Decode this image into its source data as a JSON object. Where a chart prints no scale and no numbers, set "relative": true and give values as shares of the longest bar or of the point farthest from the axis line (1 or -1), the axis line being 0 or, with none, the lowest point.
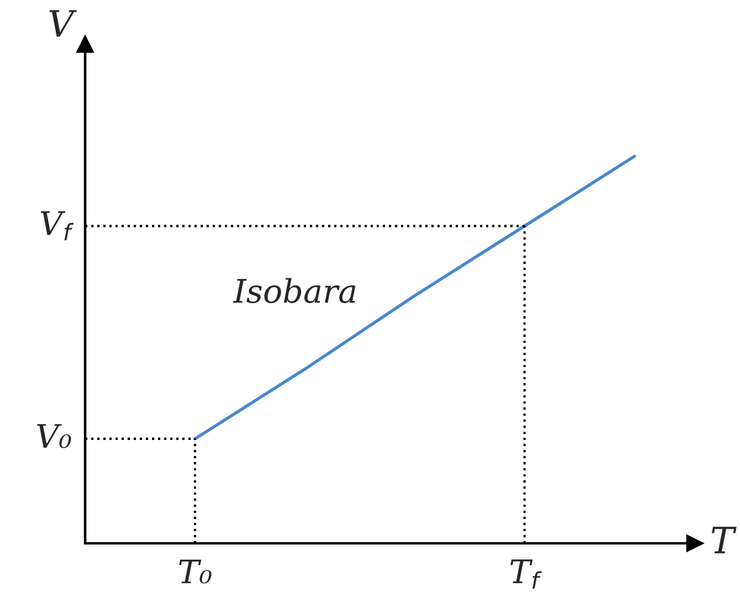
{
  "chart_data": {
    "type": "line",
    "xlabel": "T",
    "ylabel": "V",
    "relative": true,
    "categories": [
      null,
      "T₀",
      null,
      null,
      "T$_{f}$",
      null
    ],
    "series": [
      {
        "color": "#4a86d0",
        "values": [
          null,
          0.27,
          0.45,
          0.64,
          0.82,
          1.0
        ]
      }
    ],
    "ref_lines": [
      {
        "axis": "y",
        "value": 0.27,
        "label": "V₀",
        "line_style": "dotted",
        "color": "#000000"
      },
      {
        "axis": "y",
        "value": 0.82,
        "label": "V$_{f}$",
        "line_style": "dotted",
        "color": "#000000"
      },
      {
        "axis": "x",
        "value": "T₀",
        "line_style": "dotted",
        "color": "#000000"
      },
      {
        "axis": "x",
        "value": "T$_{f}$",
        "line_style": "dotted",
        "color": "#000000"
      }
    ],
    "annotations": [
      "Isobara"
    ],
    "grid": false,
    "legend": false
  }
}
